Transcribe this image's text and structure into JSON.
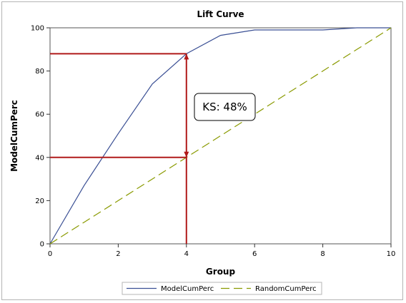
{
  "chart_data": {
    "type": "line",
    "title": "Lift Curve",
    "xlabel": "Group",
    "ylabel": "ModelCumPerc",
    "xlim": [
      0,
      10
    ],
    "ylim": [
      0,
      100
    ],
    "xticks": [
      0,
      2,
      4,
      6,
      8,
      10
    ],
    "yticks": [
      0,
      20,
      40,
      60,
      80,
      100
    ],
    "grid": false,
    "legend_position": "bottom",
    "x": [
      0,
      1,
      2,
      3,
      4,
      5,
      6,
      7,
      8,
      9,
      10
    ],
    "series": [
      {
        "name": "ModelCumPerc",
        "values": [
          0,
          27,
          51,
          74,
          88,
          96.5,
          99,
          99,
          99,
          100,
          100
        ],
        "color": "#3a4f94",
        "style": "solid"
      },
      {
        "name": "RandomCumPerc",
        "values": [
          0,
          10,
          20,
          30,
          40,
          50,
          60,
          70,
          80,
          90,
          100
        ],
        "color": "#8a9a00",
        "style": "dashed"
      }
    ],
    "annotation": {
      "text": "KS: 48%",
      "x": 4,
      "y_low": 40,
      "y_high": 88,
      "color": "#b01a1a"
    }
  }
}
